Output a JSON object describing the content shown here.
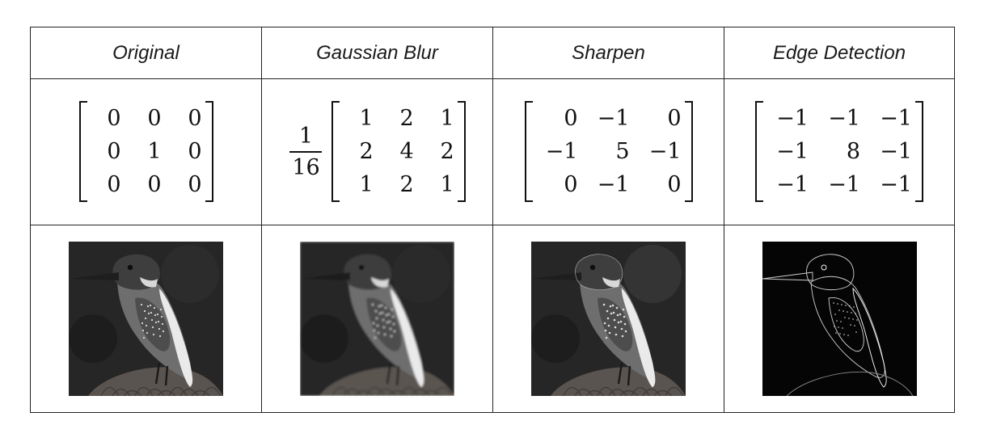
{
  "columns": [
    {
      "title": "Original",
      "scale": null,
      "matrix": [
        [
          "0",
          "0",
          "0"
        ],
        [
          "0",
          "1",
          "0"
        ],
        [
          "0",
          "0",
          "0"
        ]
      ],
      "image": {
        "style": "original",
        "icon": "kingfisher-image"
      }
    },
    {
      "title": "Gaussian Blur",
      "scale": {
        "numerator": "1",
        "denominator": "16"
      },
      "matrix": [
        [
          "1",
          "2",
          "1"
        ],
        [
          "2",
          "4",
          "2"
        ],
        [
          "1",
          "2",
          "1"
        ]
      ],
      "image": {
        "style": "blur",
        "icon": "kingfisher-image"
      }
    },
    {
      "title": "Sharpen",
      "scale": null,
      "matrix": [
        [
          "0",
          "−1",
          "0"
        ],
        [
          "−1",
          "5",
          "−1"
        ],
        [
          "0",
          "−1",
          "0"
        ]
      ],
      "image": {
        "style": "sharpen",
        "icon": "kingfisher-image"
      }
    },
    {
      "title": "Edge Detection",
      "scale": null,
      "matrix": [
        [
          "−1",
          "−1",
          "−1"
        ],
        [
          "−1",
          "8",
          "−1"
        ],
        [
          "−1",
          "−1",
          "−1"
        ]
      ],
      "image": {
        "style": "edge",
        "icon": "kingfisher-image"
      }
    }
  ],
  "colors": {
    "border": "#222222",
    "text": "#111111"
  }
}
